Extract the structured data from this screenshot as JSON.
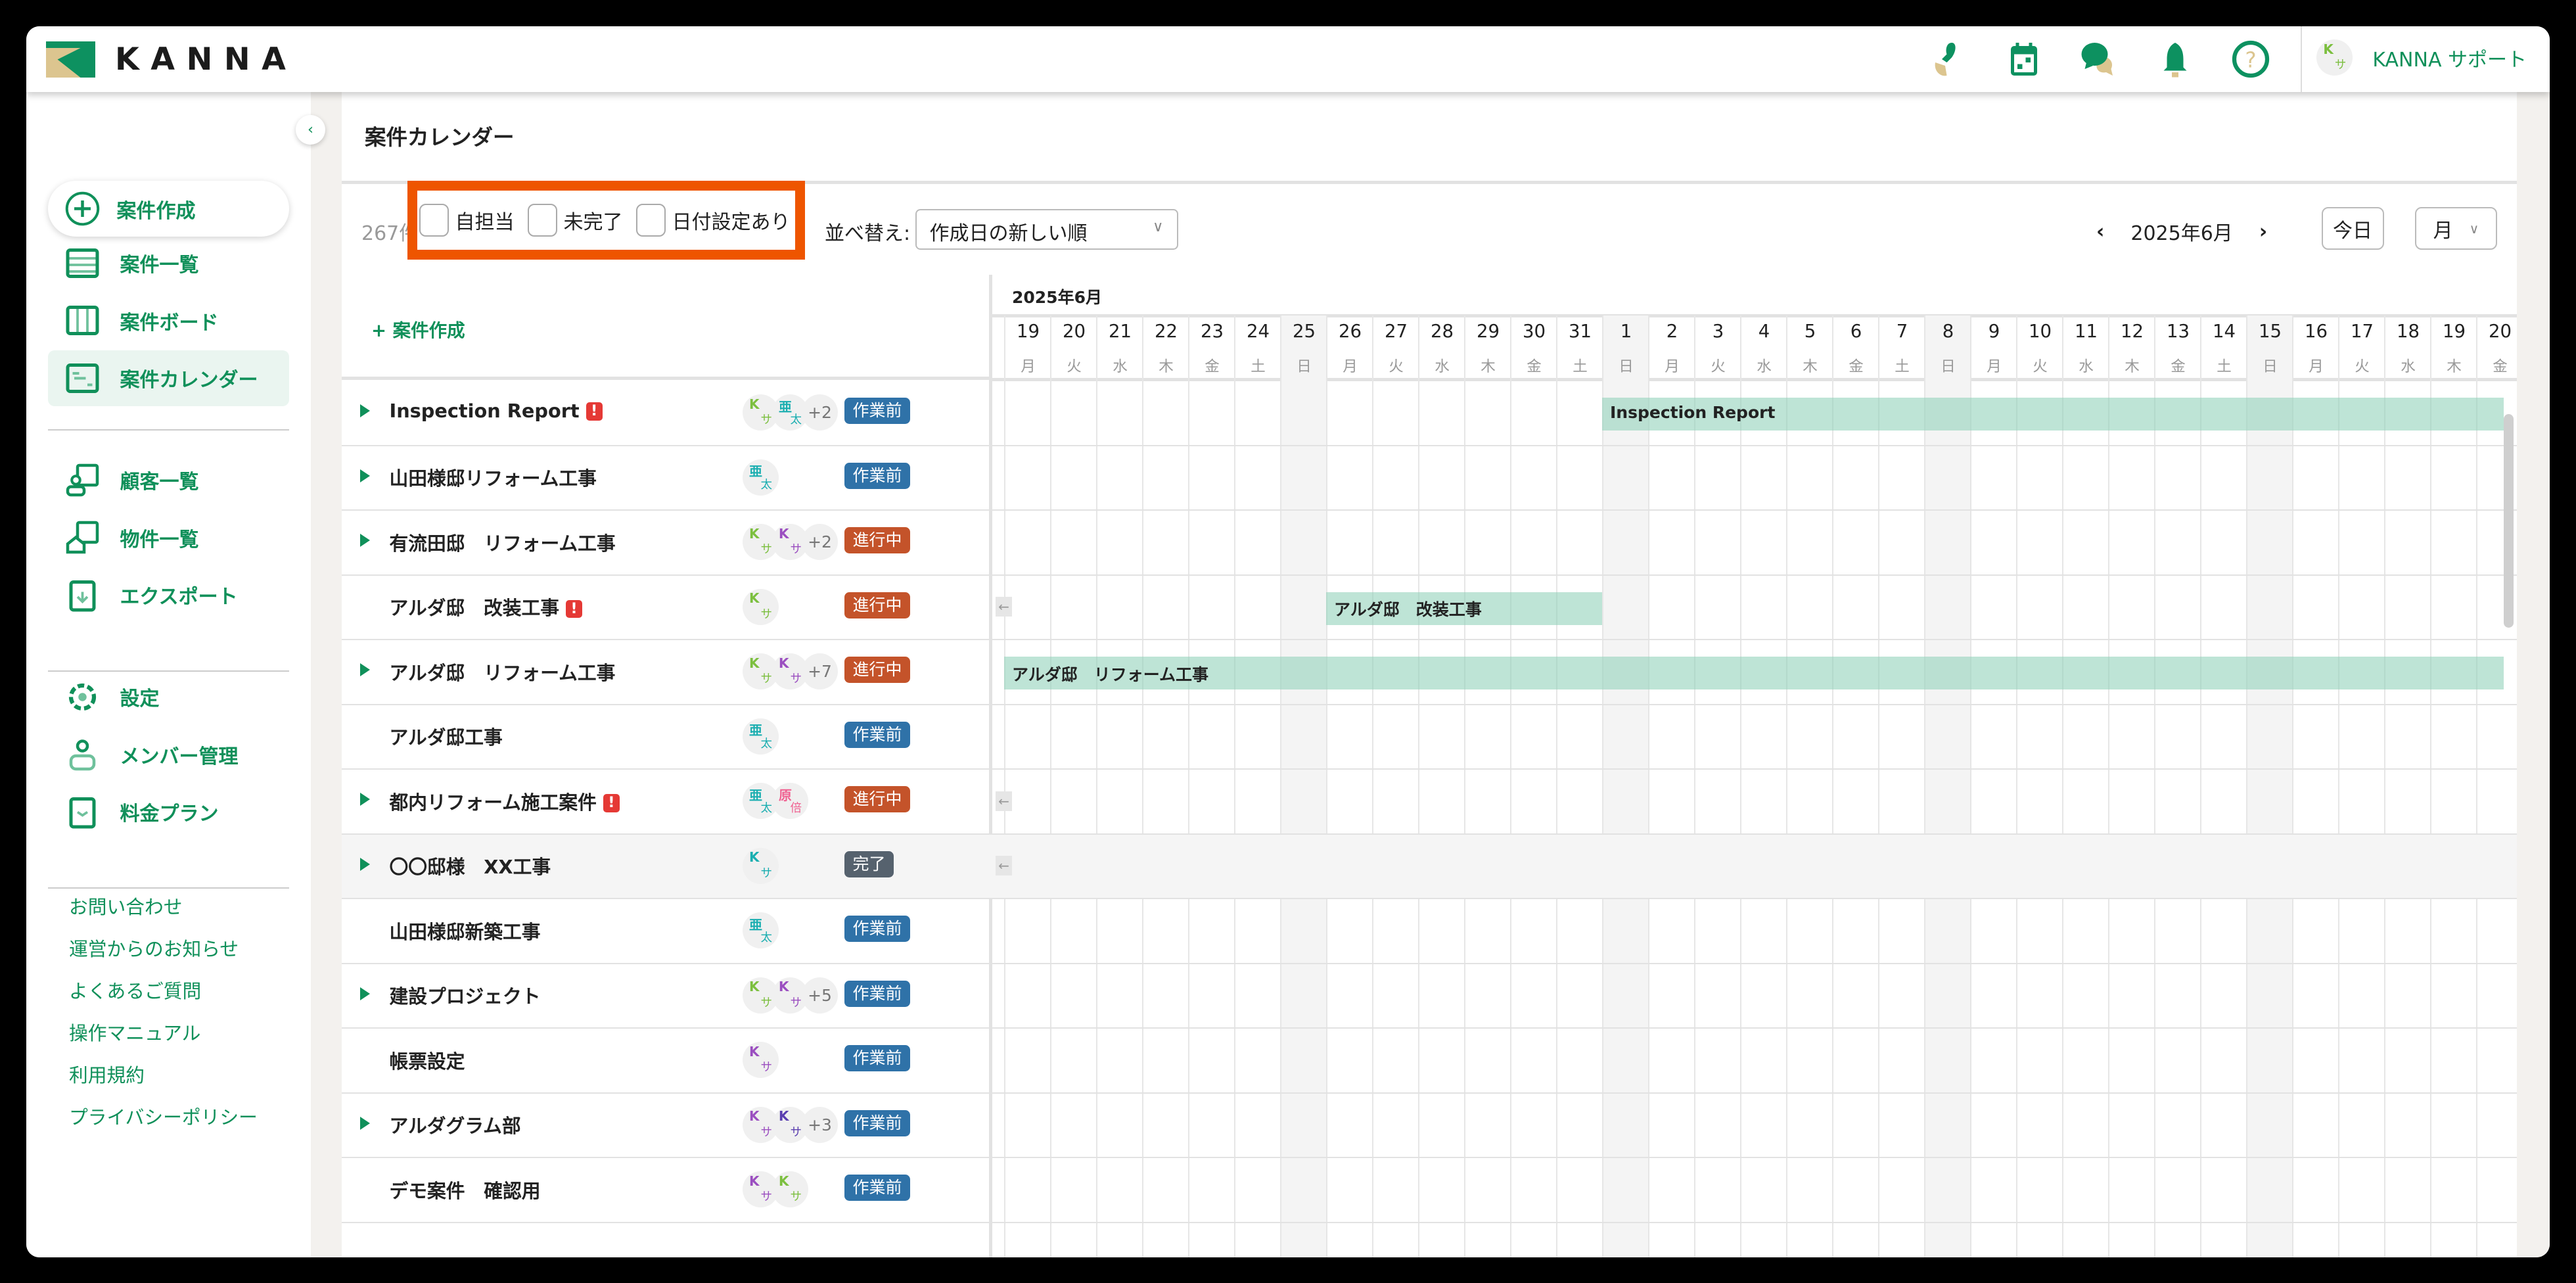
{
  "app": {
    "logo_text": "KANNA",
    "brand_color": "#10905a",
    "logo_gold": "#dcc58f"
  },
  "header": {
    "icons": [
      "stamp-icon",
      "calendar-icon",
      "chat-icon",
      "bell-icon",
      "help-icon"
    ],
    "user": {
      "avatar_top": "K",
      "avatar_bottom": "サ",
      "name": "KANNA サポート"
    }
  },
  "sidebar": {
    "create_label": "案件作成",
    "nav": [
      {
        "label": "案件一覧",
        "icon": "list-icon"
      },
      {
        "label": "案件ボード",
        "icon": "board-icon"
      },
      {
        "label": "案件カレンダー",
        "icon": "calendar-icon",
        "active": true
      },
      {
        "label": "顧客一覧",
        "icon": "customer-icon"
      },
      {
        "label": "物件一覧",
        "icon": "property-icon"
      },
      {
        "label": "エクスポート",
        "icon": "export-icon"
      },
      {
        "label": "設定",
        "icon": "gear-icon"
      },
      {
        "label": "メンバー管理",
        "icon": "member-icon"
      },
      {
        "label": "料金プラン",
        "icon": "plan-icon"
      }
    ],
    "links": [
      "お問い合わせ",
      "運営からのお知らせ",
      "よくあるご質問",
      "操作マニュアル",
      "利用規約",
      "プライバシーポリシー"
    ]
  },
  "page": {
    "title": "案件カレンダー"
  },
  "toolbar": {
    "count": "267件",
    "filters": [
      {
        "label": "自担当",
        "checked": false
      },
      {
        "label": "未完了",
        "checked": false
      },
      {
        "label": "日付設定あり",
        "checked": false
      }
    ],
    "sort_label": "並べ替え:",
    "sort_value": "作成日の新しい順",
    "month": "2025年6月",
    "today": "今日",
    "view": "月"
  },
  "list": {
    "create_label": "+ 案件作成"
  },
  "calendar": {
    "month_label": "2025年6月",
    "days": [
      {
        "d": "19",
        "w": "月"
      },
      {
        "d": "20",
        "w": "火"
      },
      {
        "d": "21",
        "w": "水"
      },
      {
        "d": "22",
        "w": "木"
      },
      {
        "d": "23",
        "w": "金"
      },
      {
        "d": "24",
        "w": "土"
      },
      {
        "d": "25",
        "w": "日"
      },
      {
        "d": "26",
        "w": "月"
      },
      {
        "d": "27",
        "w": "火"
      },
      {
        "d": "28",
        "w": "水"
      },
      {
        "d": "29",
        "w": "木"
      },
      {
        "d": "30",
        "w": "金"
      },
      {
        "d": "31",
        "w": "土"
      },
      {
        "d": "1",
        "w": "日"
      },
      {
        "d": "2",
        "w": "月"
      },
      {
        "d": "3",
        "w": "火"
      },
      {
        "d": "4",
        "w": "水"
      },
      {
        "d": "5",
        "w": "木"
      },
      {
        "d": "6",
        "w": "金"
      },
      {
        "d": "7",
        "w": "土"
      },
      {
        "d": "8",
        "w": "日"
      },
      {
        "d": "9",
        "w": "月"
      },
      {
        "d": "10",
        "w": "火"
      },
      {
        "d": "11",
        "w": "水"
      },
      {
        "d": "12",
        "w": "木"
      },
      {
        "d": "13",
        "w": "金"
      },
      {
        "d": "14",
        "w": "土"
      },
      {
        "d": "15",
        "w": "日"
      },
      {
        "d": "16",
        "w": "月"
      },
      {
        "d": "17",
        "w": "火"
      },
      {
        "d": "18",
        "w": "水"
      },
      {
        "d": "19",
        "w": "木"
      },
      {
        "d": "20",
        "w": "金"
      }
    ]
  },
  "status_colors": {
    "作業前": "#2f72a8",
    "進行中": "#c4532a",
    "完了": "#56626e"
  },
  "projects": [
    {
      "name": "Inspection Report",
      "expandable": true,
      "warning": true,
      "avatars": [
        {
          "t": "K",
          "b": "サ",
          "c": "#7cbf3f"
        },
        {
          "t": "亜",
          "b": "太",
          "c": "#1aaeb0"
        }
      ],
      "more": "+2",
      "status": "作業前",
      "bar": {
        "label": "Inspection Report",
        "start": "2025-06-01",
        "continues_after": true
      }
    },
    {
      "name": "山田様邸リフォーム工事",
      "expandable": true,
      "avatars": [
        {
          "t": "亜",
          "b": "太",
          "c": "#1aaeb0"
        }
      ],
      "status": "作業前"
    },
    {
      "name": "有流田邸　リフォーム工事",
      "expandable": true,
      "avatars": [
        {
          "t": "K",
          "b": "サ",
          "c": "#7cbf3f"
        },
        {
          "t": "K",
          "b": "サ",
          "c": "#9b4fc0"
        }
      ],
      "more": "+2",
      "status": "進行中"
    },
    {
      "name": "アルダ邸　改装工事",
      "warning": true,
      "avatars": [
        {
          "t": "K",
          "b": "サ",
          "c": "#7cbf3f"
        }
      ],
      "status": "進行中",
      "earlier": true,
      "bar": {
        "label": "アルダ邸　改装工事",
        "start": "2025-05-26",
        "end": "2025-05-31"
      }
    },
    {
      "name": "アルダ邸　リフォーム工事",
      "expandable": true,
      "avatars": [
        {
          "t": "K",
          "b": "サ",
          "c": "#7cbf3f"
        },
        {
          "t": "K",
          "b": "サ",
          "c": "#9b4fc0"
        }
      ],
      "more": "+7",
      "status": "進行中",
      "bar": {
        "label": "アルダ邸　リフォーム工事",
        "start": "2025-05-19",
        "continues_after": true
      }
    },
    {
      "name": "アルダ邸工事",
      "avatars": [
        {
          "t": "亜",
          "b": "太",
          "c": "#1aaeb0"
        }
      ],
      "status": "作業前"
    },
    {
      "name": "都内リフォーム施工案件",
      "expandable": true,
      "warning": true,
      "avatars": [
        {
          "t": "亜",
          "b": "太",
          "c": "#1aaeb0"
        },
        {
          "t": "原",
          "b": "倍",
          "c": "#f06292"
        }
      ],
      "status": "進行中",
      "earlier": true
    },
    {
      "name": "〇〇邸様　XX工事",
      "expandable": true,
      "avatars": [
        {
          "t": "K",
          "b": "サ",
          "c": "#1aaeb0"
        }
      ],
      "status": "完了",
      "earlier": true,
      "done": true
    },
    {
      "name": "山田様邸新築工事",
      "avatars": [
        {
          "t": "亜",
          "b": "太",
          "c": "#1aaeb0"
        }
      ],
      "status": "作業前"
    },
    {
      "name": "建設プロジェクト",
      "expandable": true,
      "avatars": [
        {
          "t": "K",
          "b": "サ",
          "c": "#7cbf3f"
        },
        {
          "t": "K",
          "b": "サ",
          "c": "#9b4fc0"
        }
      ],
      "more": "+5",
      "status": "作業前"
    },
    {
      "name": "帳票設定",
      "avatars": [
        {
          "t": "K",
          "b": "サ",
          "c": "#9b4fc0"
        }
      ],
      "status": "作業前"
    },
    {
      "name": "アルダグラム部",
      "expandable": true,
      "avatars": [
        {
          "t": "K",
          "b": "サ",
          "c": "#9b4fc0"
        },
        {
          "t": "K",
          "b": "サ",
          "c": "#5b3fb0"
        }
      ],
      "more": "+3",
      "status": "作業前"
    },
    {
      "name": "デモ案件　確認用",
      "avatars": [
        {
          "t": "K",
          "b": "サ",
          "c": "#9b4fc0"
        },
        {
          "t": "K",
          "b": "サ",
          "c": "#7cbf3f"
        }
      ],
      "status": "作業前"
    }
  ]
}
